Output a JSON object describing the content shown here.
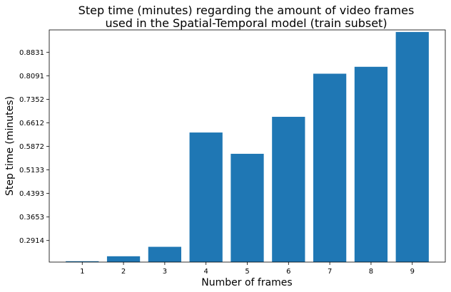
{
  "chart_data": {
    "type": "bar",
    "title_lines": [
      "Step time (minutes) regarding the amount of video frames",
      "used in the Spatial-Temporal model (train subset)"
    ],
    "xlabel": "Number of frames",
    "ylabel": "Step time (minutes)",
    "categories": [
      "1",
      "2",
      "3",
      "4",
      "5",
      "6",
      "7",
      "8",
      "9"
    ],
    "values": [
      0.2263,
      0.2419,
      0.2716,
      0.6308,
      0.5639,
      0.6801,
      0.8156,
      0.8373,
      0.9467
    ],
    "yticks": [
      "0.2914",
      "0.3653",
      "0.4393",
      "0.5133",
      "0.5872",
      "0.6612",
      "0.7352",
      "0.8091",
      "0.8831"
    ],
    "ylim": [
      0.2236,
      0.9532
    ],
    "color": "#1f77b4",
    "grid": false,
    "legend": "none"
  }
}
